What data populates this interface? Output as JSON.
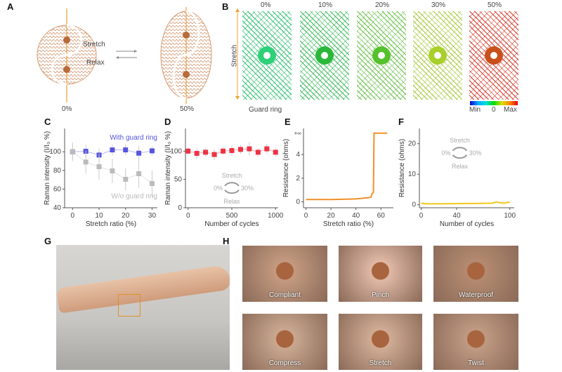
{
  "panels": {
    "A": "A",
    "B": "B",
    "C": "C",
    "D": "D",
    "E": "E",
    "F": "F",
    "G": "G",
    "H": "H"
  },
  "panelA": {
    "stretch": "Stretch",
    "relax": "Relax",
    "left_label": "0%",
    "right_label": "50%"
  },
  "panelB": {
    "titles": [
      "0%",
      "10%",
      "20%",
      "30%",
      "50%"
    ],
    "axis_label": "Stretch",
    "guard_ring": "Guard ring",
    "colorbar": {
      "min": "Min",
      "mid": "0",
      "max": "Max"
    },
    "ring_colors": [
      "#2fd07a",
      "#2bb83a",
      "#55c12c",
      "#a8cf2a",
      "#c8501a"
    ],
    "pattern_colors": [
      "#2fbf6e",
      "#3cb85a",
      "#6ac04a",
      "#a6c83e",
      "#d43a2a"
    ]
  },
  "chart_data": [
    {
      "id": "C",
      "type": "scatter",
      "xlabel": "Stretch ratio  (%)",
      "ylabel": "Raman intensity (I/I₀ %)",
      "xlim": [
        -3,
        32
      ],
      "ylim": [
        40,
        125
      ],
      "xticks": [
        0,
        10,
        20,
        30
      ],
      "yticks": [
        40,
        60,
        80,
        100
      ],
      "series": [
        {
          "name": "With guard ring",
          "color": "#5555dd",
          "x": [
            0,
            5,
            10,
            15,
            20,
            25,
            30
          ],
          "y": [
            100,
            100.5,
            96.5,
            102,
            102,
            98.5,
            101
          ],
          "err": [
            8,
            7,
            7,
            6,
            6,
            8,
            5
          ]
        },
        {
          "name": "W/o guard ring",
          "color": "#bbbbbb",
          "x": [
            0,
            5,
            10,
            15,
            20,
            25,
            30
          ],
          "y": [
            100,
            89,
            84,
            79.5,
            70.5,
            76.5,
            66
          ],
          "err": [
            10,
            12,
            14,
            13,
            12,
            15,
            14
          ]
        }
      ]
    },
    {
      "id": "D",
      "type": "scatter",
      "xlabel": "Number of cycles",
      "ylabel": "Raman intensity (I/I₀ %)",
      "xlim": [
        -30,
        1030
      ],
      "ylim": [
        0,
        140
      ],
      "xticks": [
        0,
        500,
        1000
      ],
      "yticks": [
        0,
        50,
        100
      ],
      "series": [
        {
          "color": "#ee3344",
          "x": [
            0,
            100,
            200,
            300,
            400,
            500,
            600,
            700,
            800,
            900,
            1000
          ],
          "y": [
            100,
            96,
            98,
            94,
            100,
            101,
            103,
            104,
            98,
            104,
            98
          ],
          "err": [
            6,
            10,
            8,
            9,
            7,
            9,
            8,
            12,
            7,
            9,
            8
          ]
        }
      ],
      "annotation": {
        "top": "Stretch",
        "left": "0%",
        "right": "30%",
        "bottom": "Relax"
      }
    },
    {
      "id": "E",
      "type": "line",
      "xlabel": "Stretch ratio  (%)",
      "ylabel": "Resistance (ohms)",
      "xlim": [
        -2,
        70
      ],
      "ylim": [
        -0.5,
        6.2
      ],
      "xticks": [
        0,
        20,
        40,
        60
      ],
      "yticks": [
        0,
        2,
        4
      ],
      "break_label": "+∞",
      "series": [
        {
          "color": "#f0902a",
          "x": [
            0,
            10,
            20,
            30,
            40,
            45,
            50,
            52,
            53,
            54,
            54.5,
            55,
            60,
            65
          ],
          "y": [
            0.2,
            0.2,
            0.2,
            0.22,
            0.25,
            0.3,
            0.35,
            0.4,
            0.7,
            0.8,
            5.8,
            5.8,
            5.8,
            5.8
          ]
        }
      ]
    },
    {
      "id": "F",
      "type": "line",
      "xlabel": "Number of cycles",
      "ylabel": "Resistance (ohms)",
      "xlim": [
        -2,
        105
      ],
      "ylim": [
        -1,
        25
      ],
      "xticks": [
        0,
        40,
        100
      ],
      "yticks": [
        0,
        10,
        20
      ],
      "series": [
        {
          "color": "#f2c81a",
          "x": [
            0,
            5,
            20,
            40,
            60,
            80,
            85,
            90,
            95,
            98,
            100
          ],
          "y": [
            0.5,
            0.3,
            0.3,
            0.35,
            0.4,
            0.5,
            0.9,
            0.6,
            0.5,
            0.9,
            0.6
          ]
        }
      ],
      "annotation": {
        "top": "Stretch",
        "left": "0%",
        "right": "30%",
        "bottom": "Relax"
      }
    }
  ],
  "panelH": {
    "captions": [
      "Compliant",
      "Pinch",
      "Waterproof",
      "Compress",
      "Stretch",
      "Twist"
    ]
  }
}
